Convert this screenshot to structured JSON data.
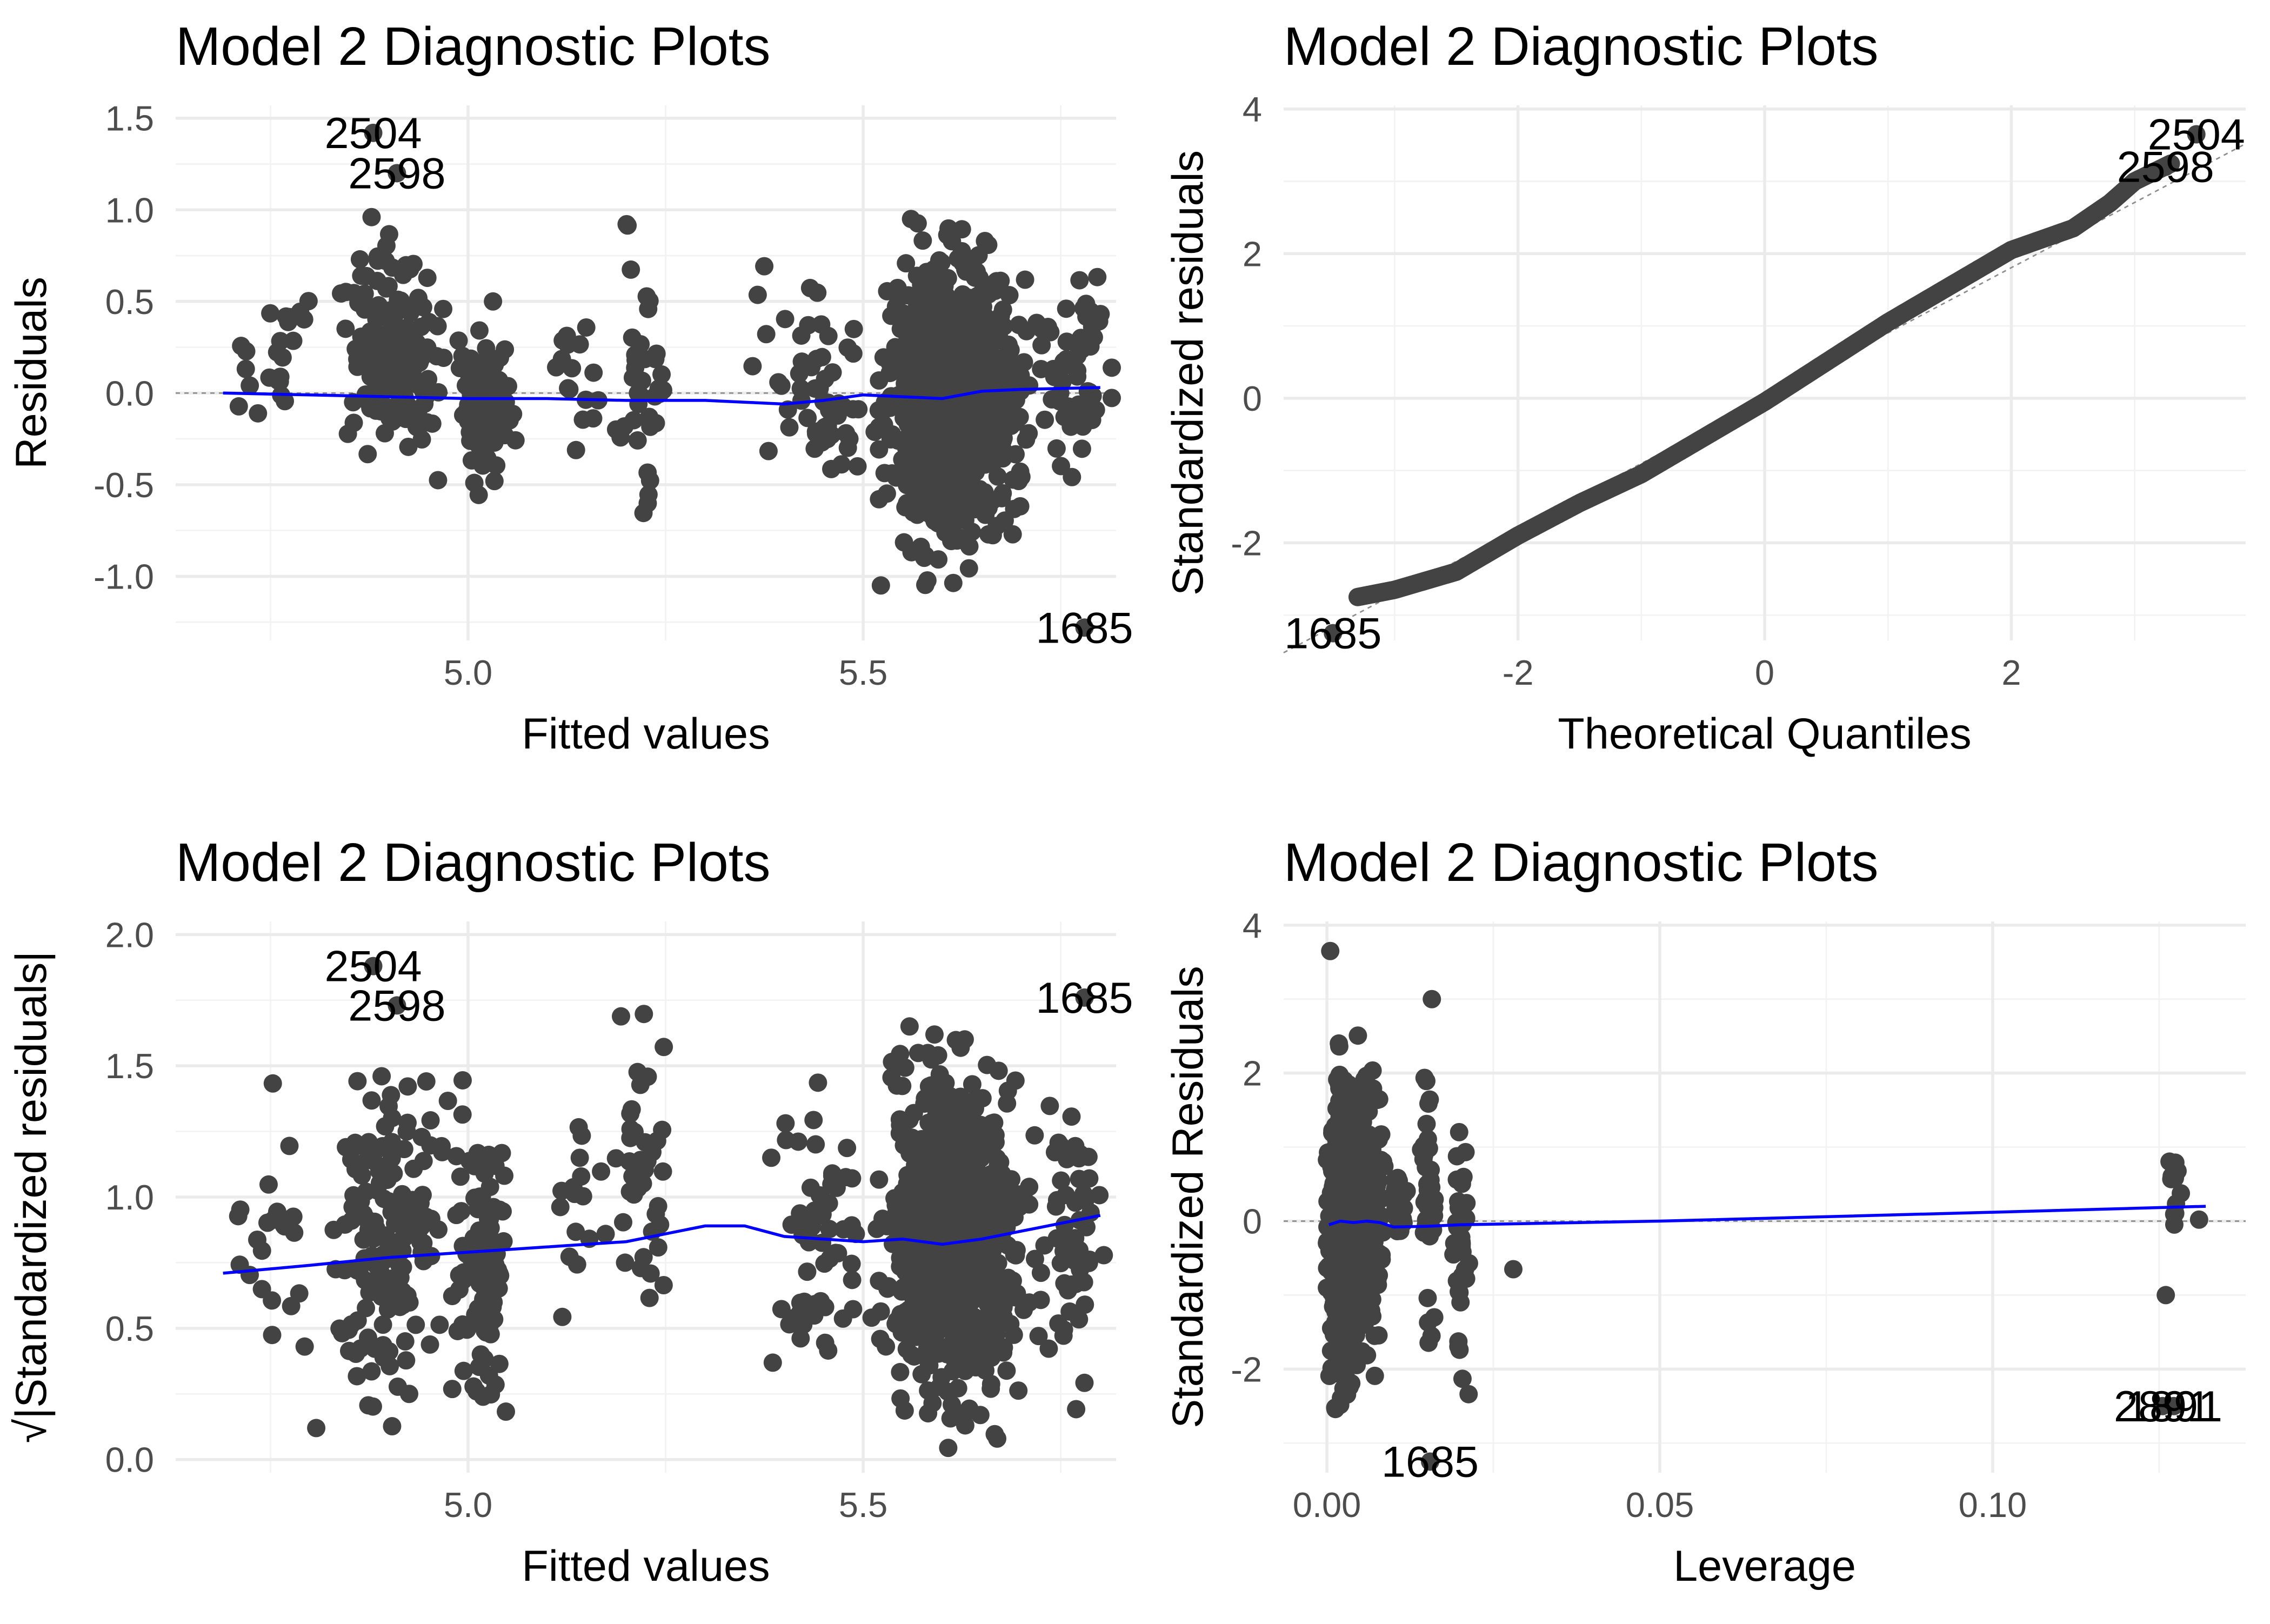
{
  "figure_title": "Model 2 Diagnostic Plots",
  "colors": {
    "points": "#434343",
    "smooth": "#0000ff",
    "reference": "#8c8c8c",
    "grid": "#ebebeb"
  },
  "chart_data": [
    {
      "id": "residuals-vs-fitted",
      "type": "scatter",
      "title": "Model 2 Diagnostic Plots",
      "xlabel": "Fitted values",
      "ylabel": "Residuals",
      "xlim": [
        4.63,
        5.82
      ],
      "ylim": [
        -1.35,
        1.57
      ],
      "xticks": [
        5.0,
        5.5
      ],
      "xtick_labels": [
        "5.0",
        "5.5"
      ],
      "yticks": [
        -1.0,
        -0.5,
        0.0,
        0.5,
        1.0,
        1.5
      ],
      "ytick_labels": [
        "-1.0",
        "-0.5",
        "0.0",
        "0.5",
        "1.0",
        "1.5"
      ],
      "grid": true,
      "reference_line": {
        "type": "horizontal",
        "y": 0
      },
      "smooth": {
        "x": [
          4.69,
          4.8,
          4.9,
          5.0,
          5.1,
          5.2,
          5.3,
          5.35,
          5.4,
          5.45,
          5.5,
          5.55,
          5.6,
          5.65,
          5.7,
          5.8
        ],
        "y": [
          0.0,
          -0.01,
          -0.02,
          -0.03,
          -0.03,
          -0.04,
          -0.04,
          -0.05,
          -0.06,
          -0.04,
          -0.01,
          -0.02,
          -0.03,
          0.01,
          0.02,
          0.03
        ]
      },
      "clusters": [
        {
          "x_range": [
            4.69,
            4.82
          ],
          "y_range": [
            -0.5,
            0.9
          ],
          "n": 24
        },
        {
          "x_range": [
            4.83,
            4.98
          ],
          "y_range": [
            -0.55,
            1.0
          ],
          "n": 170
        },
        {
          "x_range": [
            4.98,
            5.06
          ],
          "y_range": [
            -0.6,
            0.5
          ],
          "n": 110
        },
        {
          "x_range": [
            5.1,
            5.18
          ],
          "y_range": [
            -0.4,
            0.8
          ],
          "n": 16
        },
        {
          "x_range": [
            5.18,
            5.26
          ],
          "y_range": [
            -0.9,
            1.2
          ],
          "n": 38
        },
        {
          "x_range": [
            5.36,
            5.52
          ],
          "y_range": [
            -0.7,
            0.9
          ],
          "n": 60
        },
        {
          "x_range": [
            5.52,
            5.71
          ],
          "y_range": [
            -1.05,
            0.95
          ],
          "n": 900
        },
        {
          "x_range": [
            5.71,
            5.82
          ],
          "y_range": [
            -0.6,
            0.75
          ],
          "n": 60
        }
      ],
      "extreme_points": [
        {
          "x": 4.88,
          "y": 1.42,
          "label": "2504"
        },
        {
          "x": 4.91,
          "y": 1.2,
          "label": "2598"
        },
        {
          "x": 5.78,
          "y": -1.28,
          "label": "1685"
        }
      ]
    },
    {
      "id": "normal-qq",
      "type": "scatter",
      "title": "Model 2 Diagnostic Plots",
      "xlabel": "Theoretical Quantiles",
      "ylabel": "Standardized residuals",
      "xlim": [
        -3.9,
        3.9
      ],
      "ylim": [
        -3.35,
        4.05
      ],
      "xticks": [
        -2,
        0,
        2
      ],
      "xtick_labels": [
        "-2",
        "0",
        "2"
      ],
      "yticks": [
        -2,
        0,
        2,
        4
      ],
      "ytick_labels": [
        "-2",
        "0",
        "2",
        "4"
      ],
      "grid": true,
      "reference_line": {
        "type": "diagonal",
        "x": [
          -3.9,
          3.9
        ],
        "y": [
          -3.52,
          3.52
        ]
      },
      "qq_curve": {
        "x": [
          -3.3,
          -3.0,
          -2.5,
          -2.0,
          -1.5,
          -1.0,
          -0.5,
          0.0,
          0.5,
          1.0,
          1.5,
          2.0,
          2.5,
          2.8,
          3.0,
          3.3
        ],
        "y": [
          -2.75,
          -2.65,
          -2.4,
          -1.9,
          -1.45,
          -1.05,
          -0.55,
          -0.05,
          0.5,
          1.05,
          1.55,
          2.05,
          2.35,
          2.7,
          3.0,
          3.25
        ]
      },
      "extreme_points": [
        {
          "x": 3.5,
          "y": 3.65,
          "label": "2504"
        },
        {
          "x": 3.25,
          "y": 3.2,
          "label": "2598"
        },
        {
          "x": -3.5,
          "y": -3.25,
          "label": "1685"
        }
      ]
    },
    {
      "id": "scale-location",
      "type": "scatter",
      "title": "Model 2 Diagnostic Plots",
      "xlabel": "Fitted values",
      "ylabel": "√|Standardized residuals|",
      "xlim": [
        4.63,
        5.82
      ],
      "ylim": [
        -0.05,
        2.05
      ],
      "xticks": [
        5.0,
        5.5
      ],
      "xtick_labels": [
        "5.0",
        "5.5"
      ],
      "yticks": [
        0.0,
        0.5,
        1.0,
        1.5,
        2.0
      ],
      "ytick_labels": [
        "0.0",
        "0.5",
        "1.0",
        "1.5",
        "2.0"
      ],
      "grid": true,
      "smooth": {
        "x": [
          4.69,
          4.8,
          4.9,
          5.0,
          5.1,
          5.2,
          5.3,
          5.35,
          5.4,
          5.45,
          5.5,
          5.55,
          5.6,
          5.65,
          5.7,
          5.8
        ],
        "y": [
          0.71,
          0.74,
          0.77,
          0.79,
          0.81,
          0.83,
          0.89,
          0.89,
          0.85,
          0.84,
          0.83,
          0.84,
          0.82,
          0.84,
          0.87,
          0.93
        ]
      },
      "clusters": [
        {
          "x_range": [
            4.69,
            4.82
          ],
          "y_range": [
            0.12,
            1.45
          ],
          "n": 24
        },
        {
          "x_range": [
            4.83,
            4.98
          ],
          "y_range": [
            0.08,
            1.6
          ],
          "n": 170
        },
        {
          "x_range": [
            4.98,
            5.06
          ],
          "y_range": [
            0.02,
            1.55
          ],
          "n": 110
        },
        {
          "x_range": [
            5.1,
            5.18
          ],
          "y_range": [
            0.35,
            1.4
          ],
          "n": 16
        },
        {
          "x_range": [
            5.18,
            5.26
          ],
          "y_range": [
            0.3,
            1.75
          ],
          "n": 38
        },
        {
          "x_range": [
            5.36,
            5.52
          ],
          "y_range": [
            0.05,
            1.6
          ],
          "n": 60
        },
        {
          "x_range": [
            5.52,
            5.71
          ],
          "y_range": [
            0.02,
            1.65
          ],
          "n": 900
        },
        {
          "x_range": [
            5.71,
            5.82
          ],
          "y_range": [
            0.1,
            1.5
          ],
          "n": 60
        }
      ],
      "extreme_points": [
        {
          "x": 4.88,
          "y": 1.88,
          "label": "2504"
        },
        {
          "x": 4.91,
          "y": 1.73,
          "label": "2598"
        },
        {
          "x": 5.78,
          "y": 1.76,
          "label": "1685"
        }
      ]
    },
    {
      "id": "residuals-vs-leverage",
      "type": "scatter",
      "title": "Model 2 Diagnostic Plots",
      "xlabel": "Leverage",
      "ylabel": "Standardized Residuals",
      "xlim": [
        -0.0065,
        0.138
      ],
      "ylim": [
        -3.4,
        4.05
      ],
      "xticks": [
        0.0,
        0.05,
        0.1
      ],
      "xtick_labels": [
        "0.00",
        "0.05",
        "0.10"
      ],
      "yticks": [
        -2,
        0,
        2,
        4
      ],
      "ytick_labels": [
        "-2",
        "0",
        "2",
        "4"
      ],
      "grid": true,
      "reference_line": {
        "type": "horizontal",
        "y": 0
      },
      "smooth": {
        "x": [
          0.0003,
          0.002,
          0.004,
          0.006,
          0.008,
          0.01,
          0.015,
          0.02,
          0.05,
          0.1,
          0.132
        ],
        "y": [
          -0.05,
          0.0,
          -0.02,
          0.0,
          -0.02,
          -0.08,
          -0.07,
          -0.05,
          0.0,
          0.12,
          0.2
        ]
      },
      "clusters": [
        {
          "x_range": [
            0.0,
            0.004
          ],
          "y_range": [
            -2.8,
            2.4
          ],
          "n": 500
        },
        {
          "x_range": [
            0.003,
            0.009
          ],
          "y_range": [
            -2.4,
            2.8
          ],
          "n": 180
        },
        {
          "x_range": [
            0.01,
            0.012
          ],
          "y_range": [
            -0.5,
            0.9
          ],
          "n": 25
        },
        {
          "x_range": [
            0.014,
            0.0165
          ],
          "y_range": [
            -2.2,
            3.0
          ],
          "n": 40
        },
        {
          "x_range": [
            0.019,
            0.0215
          ],
          "y_range": [
            -2.5,
            1.9
          ],
          "n": 36
        },
        {
          "x_range": [
            0.126,
            0.1285
          ],
          "y_range": [
            -0.45,
            1.2
          ],
          "n": 12
        }
      ],
      "extreme_points": [
        {
          "x": 0.0005,
          "y": 3.65,
          "label": ""
        },
        {
          "x": 0.0155,
          "y": -3.25,
          "label": "1685"
        },
        {
          "x": 0.1255,
          "y": -2.5,
          "label": "2891"
        },
        {
          "x": 0.1272,
          "y": -2.5,
          "label": "1891"
        },
        {
          "x": 0.131,
          "y": 0.02,
          "label": ""
        },
        {
          "x": 0.126,
          "y": -1.0,
          "label": ""
        },
        {
          "x": 0.028,
          "y": -0.65,
          "label": ""
        }
      ]
    }
  ]
}
